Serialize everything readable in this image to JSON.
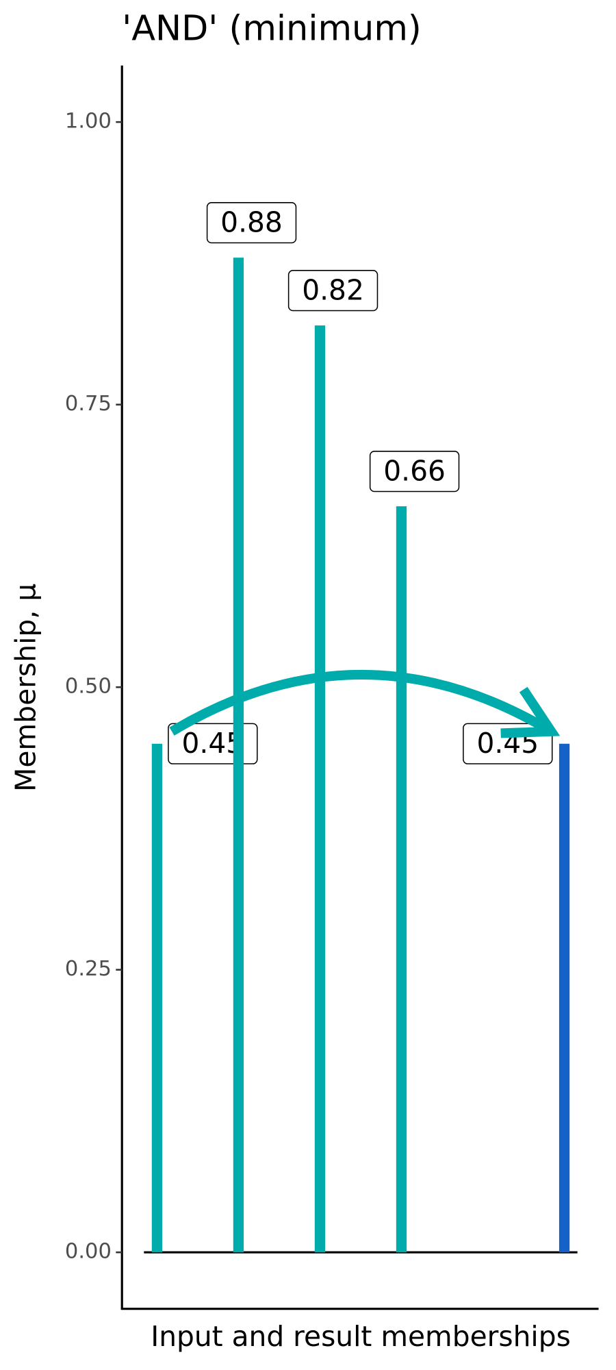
{
  "chart_data": {
    "type": "lollipop",
    "title": "'AND' (minimum)",
    "x_label": "Input and result memberships",
    "y_label": "Membership, μ",
    "x": [
      1,
      2,
      3,
      4,
      6
    ],
    "values": [
      0.45,
      0.88,
      0.82,
      0.66,
      0.45
    ],
    "colors": [
      "#00abab",
      "#00abab",
      "#00abab",
      "#00abab",
      "#1462c8"
    ],
    "xlim": [
      0.57,
      6.42
    ],
    "ylim": [
      -0.05,
      1.05
    ],
    "yticks": [
      {
        "value": 0,
        "label": "0.00"
      },
      {
        "value": 0.25,
        "label": "0.25"
      },
      {
        "value": 0.5,
        "label": "0.50"
      },
      {
        "value": 0.75,
        "label": "0.75"
      },
      {
        "value": 1,
        "label": "1.00"
      }
    ],
    "grid": false
  }
}
